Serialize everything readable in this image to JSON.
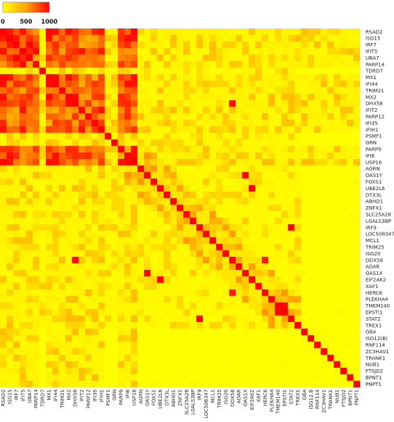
{
  "chart_data": {
    "type": "heatmap",
    "title": "",
    "xlabel": "",
    "ylabel": "",
    "genes": [
      "RSAD2",
      "ISG15",
      "IRF7",
      "IFIT5",
      "UBA7",
      "PARP14",
      "TDRD7",
      "MX1",
      "IFI44",
      "TRIM21",
      "MX2",
      "DHX58",
      "IFIT2",
      "PARP12",
      "IFI35",
      "IFIH1",
      "PSMF1",
      "GRN",
      "PARP9",
      "IFI6",
      "USP18",
      "AGRN",
      "OAS1Y",
      "FOXS1",
      "UBE2L6",
      "DTX3L",
      "ABHD1",
      "ZNFX1",
      "SLC25A28",
      "LGALS3BP",
      "IRF9",
      "LOC508347",
      "MCL1",
      "TRIM25",
      "ISG20",
      "DDX58",
      "ADAR",
      "OAS1X",
      "EIF2AK2",
      "XAF1",
      "HERC6",
      "PLEKHA4",
      "TMEM140",
      "EPSTI1",
      "STAT2",
      "TREX1",
      "GBA",
      "ISG12(B)",
      "RNF114",
      "ZC3HAV1",
      "TRANK1",
      "NUB1",
      "FTSJD2",
      "BPNT1",
      "PNPT1"
    ],
    "x_tick_labels": [
      "RSAD2",
      "ISG15",
      "IRF7",
      "IFIT5",
      "UBA7",
      "PARP14",
      "TDRD7",
      "MX1",
      "IFI44",
      "TRIM21",
      "MX2",
      "DHX58",
      "IFIT2",
      "PARP12",
      "IFI35",
      "IFIH1",
      "PSMF1",
      "GRN",
      "PARP9",
      "IFI6",
      "USP18",
      "AGRN",
      "OAS1Y",
      "FOXS1",
      "UBE2L6",
      "DTX3L",
      "ABHD1",
      "ZNFX1",
      "SLC25A28",
      "LGALS3BP",
      "IRF9",
      "LOC508347",
      "MCL1",
      "TRIM25",
      "ISG20",
      "DDX58",
      "ADAR",
      "OAS1X",
      "EIF2AK2",
      "XAF1",
      "HERC6",
      "PLEKHA4",
      "TMEM140",
      "EPSTI1",
      "STAT2",
      "TREX1",
      "GBA",
      "ISG12.B",
      "RNF114",
      "ZC3HAV1",
      "TRANK1",
      "NUB1",
      "FTSJD2",
      "BPNT1",
      "PNPT1"
    ],
    "diagonal_value": 1000,
    "colorbar": {
      "ticks": [
        0,
        500,
        1000
      ],
      "tick_labels": [
        "0",
        "500",
        "1000"
      ],
      "range": [
        0,
        1000
      ],
      "colors": [
        "#ffff00",
        "#ffa500",
        "#ff0000"
      ],
      "placement": "top-left"
    },
    "cluster_block_genes": [
      "RSAD2",
      "ISG15",
      "IRF7",
      "IFIT5",
      "UBA7",
      "PARP14",
      "MX1",
      "IFI44",
      "TRIM21",
      "MX2",
      "DHX58",
      "IFIT2",
      "PARP12",
      "IFI35",
      "IFIH1",
      "PARP9",
      "IFI6",
      "USP18"
    ],
    "strong_pairs": [
      [
        "RSAD2",
        "ISG15"
      ],
      [
        "RSAD2",
        "IFIT5"
      ],
      [
        "RSAD2",
        "MX1"
      ],
      [
        "RSAD2",
        "IFI44"
      ],
      [
        "RSAD2",
        "MX2"
      ],
      [
        "RSAD2",
        "IFIH1"
      ],
      [
        "RSAD2",
        "USP18"
      ],
      [
        "ISG15",
        "IRF7"
      ],
      [
        "ISG15",
        "MX1"
      ],
      [
        "ISG15",
        "IFI6"
      ],
      [
        "ISG15",
        "USP18"
      ],
      [
        "IRF7",
        "UBA7"
      ],
      [
        "IFIT5",
        "IFIT2"
      ],
      [
        "IFIT5",
        "IFIH1"
      ],
      [
        "IFIT5",
        "PARP14"
      ],
      [
        "MX1",
        "IFI44"
      ],
      [
        "MX1",
        "MX2"
      ],
      [
        "MX1",
        "USP18"
      ],
      [
        "IFI44",
        "IFI6"
      ],
      [
        "IFI44",
        "USP18"
      ],
      [
        "MX2",
        "DHX58"
      ],
      [
        "IFIT2",
        "IFIH1"
      ],
      [
        "PARP9",
        "USP18"
      ],
      [
        "IFI6",
        "USP18"
      ],
      [
        "UBE2L6",
        "EIF2AK2"
      ],
      [
        "DHX58",
        "DDX58"
      ],
      [
        "IRF9",
        "STAT2"
      ],
      [
        "DDX58",
        "HERC6"
      ],
      [
        "OAS1Y",
        "OAS1X"
      ],
      [
        "EPSTI1",
        "TMEM140"
      ]
    ],
    "background_value": 0
  }
}
